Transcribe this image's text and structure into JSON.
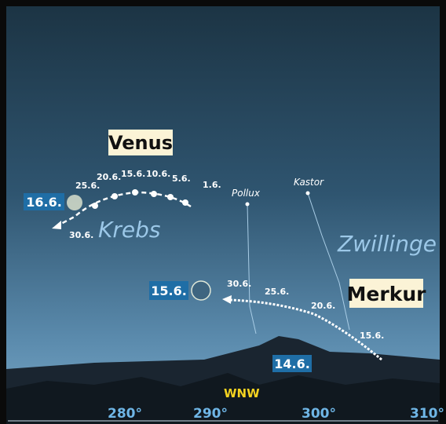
{
  "venus": {
    "label": "Venus",
    "box_date": "16.6.",
    "dates": [
      "1.6.",
      "5.6.",
      "10.6.",
      "15.6.",
      "20.6.",
      "25.6.",
      "30.6."
    ]
  },
  "moon": {
    "box_date": "15.6."
  },
  "constellations": {
    "cancer": "Krebs",
    "gemini": "Zwillinge",
    "stars": [
      "Pollux",
      "Kastor"
    ]
  },
  "mercury": {
    "label": "Merkur",
    "box_date": "14.6.",
    "dates": [
      "30.6.",
      "25.6.",
      "20.6.",
      "15.6."
    ]
  },
  "horizon": {
    "direction": "WNW",
    "azimuths": [
      "280°",
      "290°",
      "300°",
      "310°"
    ]
  }
}
